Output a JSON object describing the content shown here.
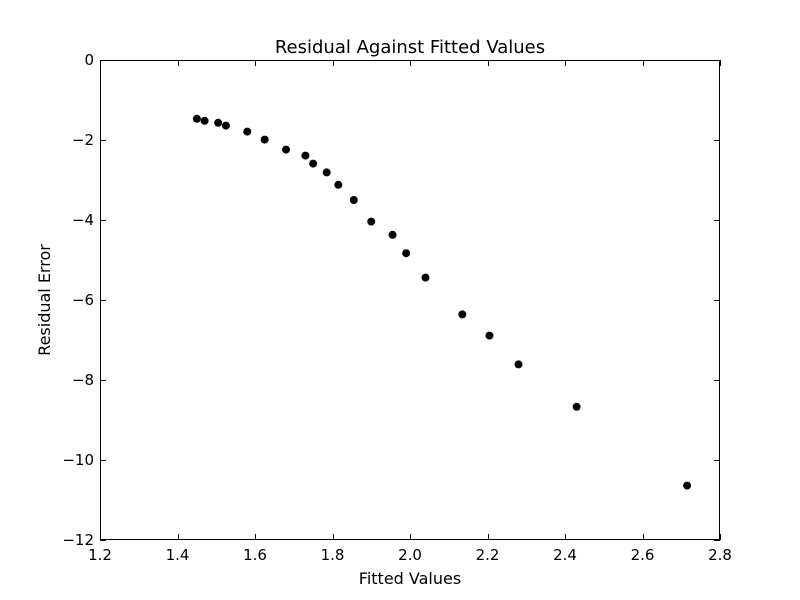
{
  "chart_data": {
    "type": "scatter",
    "title": "Residual Against Fitted Values",
    "xlabel": "Fitted Values",
    "ylabel": "Residual Error",
    "xlim": [
      1.2,
      2.8
    ],
    "ylim": [
      -12,
      0
    ],
    "xticks": [
      1.2,
      1.4,
      1.6,
      1.8,
      2.0,
      2.2,
      2.4,
      2.6,
      2.8
    ],
    "xtick_labels": [
      "1.2",
      "1.4",
      "1.6",
      "1.8",
      "2.0",
      "2.2",
      "2.4",
      "2.6",
      "2.8"
    ],
    "yticks": [
      0,
      -2,
      -4,
      -6,
      -8,
      -10,
      -12
    ],
    "ytick_labels": [
      "0",
      "−2",
      "−4",
      "−6",
      "−8",
      "−10",
      "−12"
    ],
    "grid": false,
    "marker_color": "#000000",
    "points": [
      {
        "x": 1.45,
        "y": -1.47
      },
      {
        "x": 1.47,
        "y": -1.52
      },
      {
        "x": 1.505,
        "y": -1.57
      },
      {
        "x": 1.525,
        "y": -1.64
      },
      {
        "x": 1.58,
        "y": -1.79
      },
      {
        "x": 1.625,
        "y": -1.99
      },
      {
        "x": 1.68,
        "y": -2.24
      },
      {
        "x": 1.73,
        "y": -2.39
      },
      {
        "x": 1.75,
        "y": -2.59
      },
      {
        "x": 1.785,
        "y": -2.81
      },
      {
        "x": 1.815,
        "y": -3.12
      },
      {
        "x": 1.855,
        "y": -3.5
      },
      {
        "x": 1.9,
        "y": -4.04
      },
      {
        "x": 1.955,
        "y": -4.37
      },
      {
        "x": 1.99,
        "y": -4.83
      },
      {
        "x": 2.04,
        "y": -5.44
      },
      {
        "x": 2.135,
        "y": -6.36
      },
      {
        "x": 2.205,
        "y": -6.89
      },
      {
        "x": 2.28,
        "y": -7.61
      },
      {
        "x": 2.43,
        "y": -8.67
      },
      {
        "x": 2.715,
        "y": -10.64
      }
    ]
  }
}
